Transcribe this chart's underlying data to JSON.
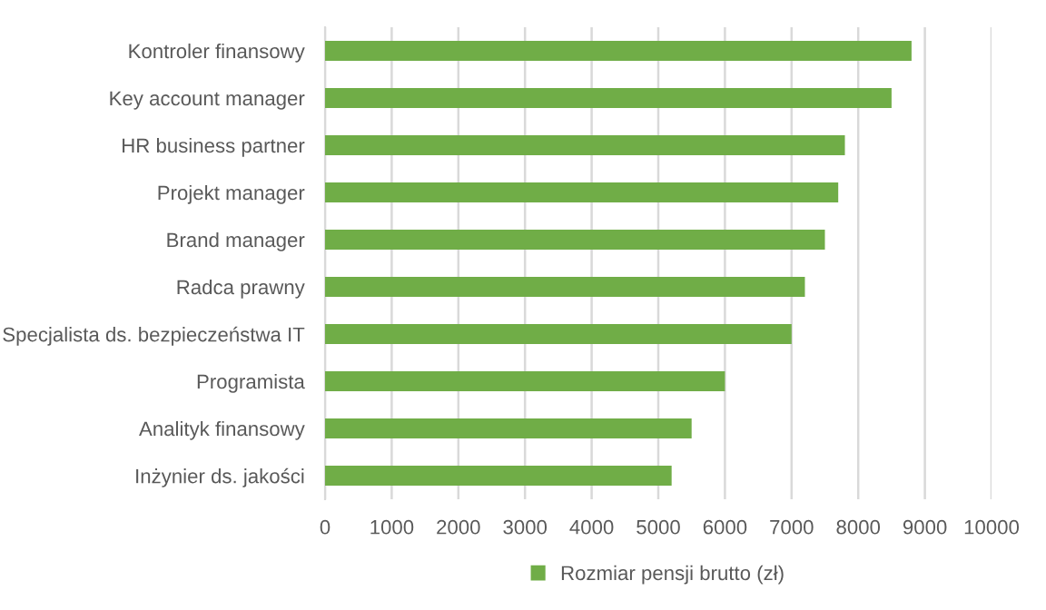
{
  "chart_data": {
    "type": "bar",
    "orientation": "horizontal",
    "categories": [
      "Kontroler finansowy",
      "Key account manager",
      "HR business partner",
      "Projekt manager",
      "Brand manager",
      "Radca prawny",
      "Specjalista ds. bezpieczeństwa IT",
      "Programista",
      "Analityk finansowy",
      "Inżynier ds. jakości"
    ],
    "series": [
      {
        "name": "Rozmiar pensji brutto (zł)",
        "color": "#70ad47",
        "values": [
          8800,
          8500,
          7800,
          7700,
          7500,
          7200,
          7000,
          6000,
          5500,
          5200
        ]
      }
    ],
    "xlim": [
      0,
      10000
    ],
    "xticks": [
      0,
      1000,
      2000,
      3000,
      4000,
      5000,
      6000,
      7000,
      8000,
      9000,
      10000
    ],
    "grid": "x",
    "legend": "bottom"
  }
}
